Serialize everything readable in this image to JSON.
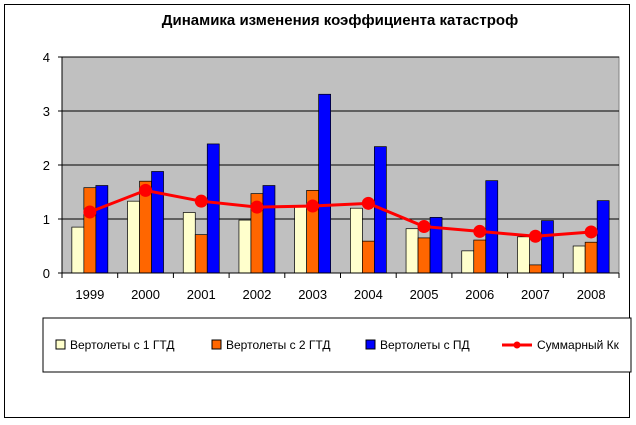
{
  "chart_data": {
    "type": "bar",
    "title": "Динамика изменения коэффициента катастроф",
    "categories": [
      "1999",
      "2000",
      "2001",
      "2002",
      "2003",
      "2004",
      "2005",
      "2006",
      "2007",
      "2008"
    ],
    "ylim": [
      0,
      4
    ],
    "yticks": [
      "0",
      "1",
      "2",
      "3",
      "4"
    ],
    "grid": true,
    "legend_position": "bottom",
    "series": [
      {
        "name": "Вертолеты с 1 ГТД",
        "kind": "bar",
        "color": "#FFFFCC",
        "values": [
          0.85,
          1.33,
          1.12,
          0.98,
          1.23,
          1.2,
          0.82,
          0.41,
          0.67,
          0.5
        ]
      },
      {
        "name": "Вертолеты с 2 ГТД",
        "kind": "bar",
        "color": "#FF6600",
        "values": [
          1.58,
          1.7,
          0.71,
          1.47,
          1.53,
          0.59,
          0.65,
          0.61,
          0.15,
          0.57
        ]
      },
      {
        "name": "Вертолеты с ПД",
        "kind": "bar",
        "color": "#0000FF",
        "values": [
          1.62,
          1.88,
          2.39,
          1.62,
          3.31,
          2.34,
          1.03,
          1.71,
          0.97,
          1.34
        ]
      },
      {
        "name": "Суммарный Кк",
        "kind": "line",
        "color": "#FF0000",
        "values": [
          1.13,
          1.53,
          1.33,
          1.22,
          1.24,
          1.29,
          0.86,
          0.77,
          0.68,
          0.76
        ]
      }
    ]
  }
}
